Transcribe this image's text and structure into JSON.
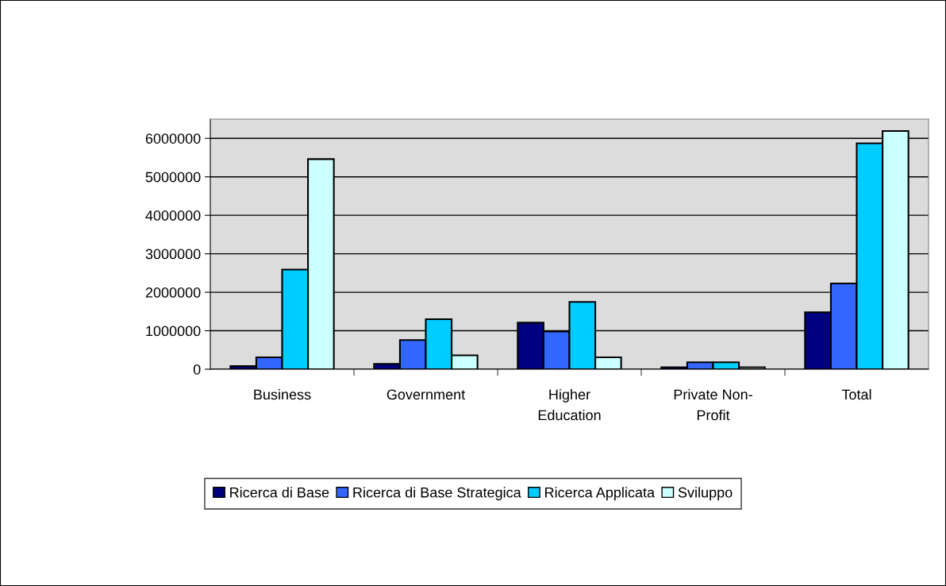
{
  "chart_data": {
    "type": "bar",
    "categories": [
      "Business",
      "Government",
      "Higher\nEducation",
      "Private Non-\nProfit",
      "Total"
    ],
    "series": [
      {
        "name": "Ricerca di Base",
        "color": "#000080",
        "values": [
          80000,
          140000,
          1210000,
          50000,
          1480000
        ]
      },
      {
        "name": "Ricerca di Base Strategica",
        "color": "#3366ff",
        "values": [
          310000,
          760000,
          980000,
          180000,
          2230000
        ]
      },
      {
        "name": "Ricerca Applicata",
        "color": "#00ccff",
        "values": [
          2590000,
          1300000,
          1750000,
          180000,
          5870000
        ]
      },
      {
        "name": "Sviluppo",
        "color": "#ccffff",
        "values": [
          5460000,
          360000,
          310000,
          50000,
          6190000
        ]
      }
    ],
    "ylim": [
      0,
      6500000
    ],
    "yticks": [
      0,
      1000000,
      2000000,
      3000000,
      4000000,
      5000000,
      6000000
    ],
    "grid": "y",
    "legend": "bottom"
  }
}
